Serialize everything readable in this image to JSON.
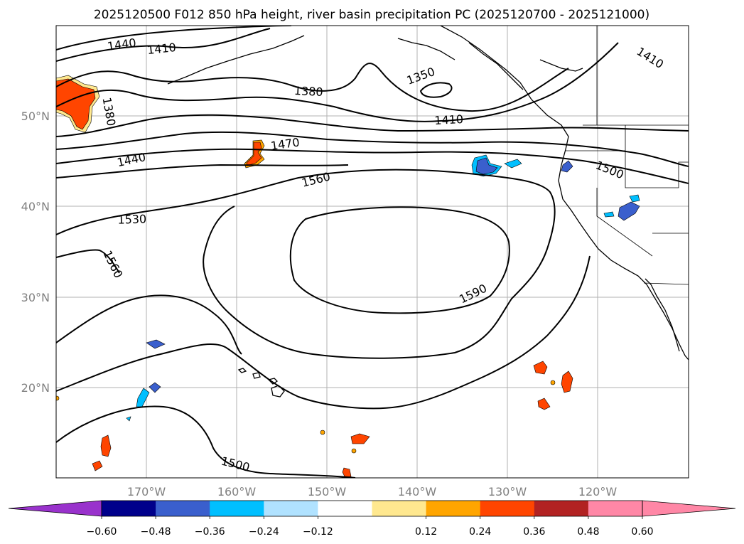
{
  "title": "2025120500 F012 850 hPa height, river basin precipitation PC (2025120700 - 2025121000)",
  "map": {
    "lon_labels": [
      "170°W",
      "160°W",
      "150°W",
      "140°W",
      "130°W",
      "120°W"
    ],
    "lat_labels": [
      "50°N",
      "40°N",
      "30°N",
      "20°N"
    ],
    "contour_labels": [
      "1440",
      "1410",
      "1380",
      "1350",
      "1410",
      "1410",
      "1380",
      "1470",
      "1440",
      "1500",
      "1560",
      "1530",
      "1560",
      "1590",
      "1500"
    ]
  },
  "colorbar": {
    "colors": [
      "#9932cc",
      "#00008b",
      "#3a5fcd",
      "#00bfff",
      "#b0e2ff",
      "#ffffff",
      "#ffe88f",
      "#ffa500",
      "#ff4500",
      "#b22222",
      "#ff87a6",
      "#ff87a6"
    ],
    "extend_low_color": "#9932cc",
    "extend_high_color": "#ff87a6",
    "tick_labels": [
      "−0.60",
      "−0.48",
      "−0.36",
      "−0.24",
      "−0.12",
      "0.12",
      "0.24",
      "0.36",
      "0.48",
      "0.60"
    ]
  }
}
